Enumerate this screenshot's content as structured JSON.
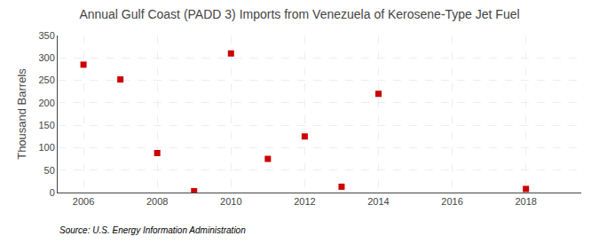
{
  "chart_data": {
    "type": "scatter",
    "title": "Annual Gulf Coast (PADD 3) Imports from Venezuela of Kerosene-Type Jet Fuel",
    "ylabel": "Thousand Barrels",
    "source": "Source: U.S. Energy Information Administration",
    "x": [
      2006,
      2007,
      2008,
      2009,
      2010,
      2011,
      2012,
      2013,
      2014,
      2018
    ],
    "values": [
      285,
      252,
      88,
      3,
      310,
      75,
      125,
      13,
      220,
      8
    ],
    "color": "#cc0000",
    "marker": "square",
    "xlim": [
      2005.3,
      2019.5
    ],
    "ylim": [
      0,
      350
    ],
    "xticks": [
      2006,
      2008,
      2010,
      2012,
      2014,
      2016,
      2018
    ],
    "yticks": [
      0,
      50,
      100,
      150,
      200,
      250,
      300,
      350
    ],
    "grid": true
  }
}
